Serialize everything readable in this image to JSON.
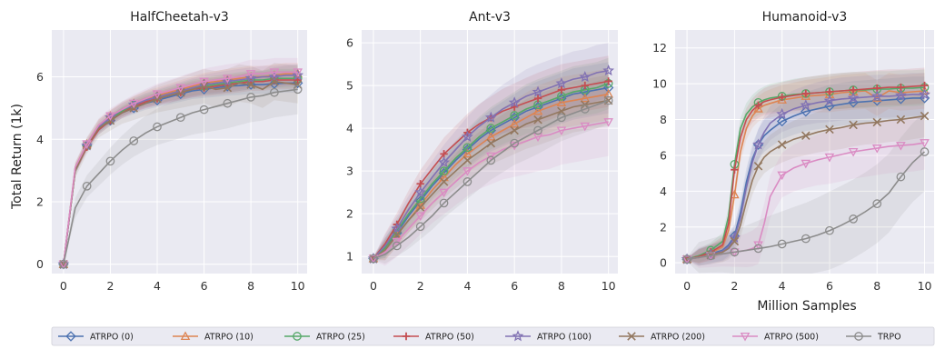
{
  "figure": {
    "ylabel": "Total Return (1k)",
    "xlabel": "Million Samples"
  },
  "legend": [
    {
      "name": "ATRPO (0)",
      "color": "#4c72b0",
      "marker": "diamond"
    },
    {
      "name": "ATRPO (10)",
      "color": "#dd8452",
      "marker": "triangle-up"
    },
    {
      "name": "ATRPO (25)",
      "color": "#55a868",
      "marker": "circle"
    },
    {
      "name": "ATRPO (50)",
      "color": "#c44e52",
      "marker": "plus"
    },
    {
      "name": "ATRPO (100)",
      "color": "#8172b3",
      "marker": "star"
    },
    {
      "name": "ATRPO (200)",
      "color": "#937860",
      "marker": "x"
    },
    {
      "name": "ATRPO (500)",
      "color": "#da8bc3",
      "marker": "triangle-down"
    },
    {
      "name": "TRPO",
      "color": "#8c8c8c",
      "marker": "circle"
    }
  ],
  "chart_data": [
    {
      "type": "line",
      "title": "HalfCheetah-v3",
      "xlabel": "",
      "ylabel": "Total Return (1k)",
      "xlim": [
        -0.5,
        10.4
      ],
      "ylim": [
        -0.3,
        7.5
      ],
      "xticks": [
        0,
        2,
        4,
        6,
        8,
        10
      ],
      "yticks": [
        0,
        2,
        4,
        6
      ],
      "grid": true,
      "x": [
        0,
        0.5,
        1,
        1.5,
        2,
        2.5,
        3,
        3.5,
        4,
        4.5,
        5,
        5.5,
        6,
        6.5,
        7,
        7.5,
        8,
        8.5,
        9,
        9.5,
        10
      ],
      "series": [
        {
          "name": "ATRPO (0)",
          "band": 0.3,
          "values": [
            0,
            3.0,
            3.8,
            4.3,
            4.6,
            4.85,
            5.0,
            5.15,
            5.25,
            5.35,
            5.45,
            5.55,
            5.6,
            5.65,
            5.7,
            5.72,
            5.75,
            5.75,
            5.78,
            5.8,
            5.8
          ]
        },
        {
          "name": "ATRPO (10)",
          "band": 0.35,
          "values": [
            0,
            3.1,
            3.85,
            4.45,
            4.75,
            4.95,
            5.15,
            5.3,
            5.4,
            5.5,
            5.6,
            5.7,
            5.8,
            5.85,
            5.9,
            5.95,
            6.0,
            6.0,
            6.05,
            6.1,
            6.1
          ]
        },
        {
          "name": "ATRPO (25)",
          "band": 0.3,
          "values": [
            0,
            3.0,
            3.8,
            4.35,
            4.65,
            4.9,
            5.1,
            5.25,
            5.35,
            5.45,
            5.55,
            5.65,
            5.7,
            5.75,
            5.8,
            5.85,
            5.9,
            5.9,
            5.95,
            5.95,
            5.95
          ]
        },
        {
          "name": "ATRPO (50)",
          "band": 0.3,
          "values": [
            0,
            3.0,
            3.75,
            4.3,
            4.6,
            4.85,
            5.05,
            5.2,
            5.3,
            5.4,
            5.5,
            5.6,
            5.65,
            5.7,
            5.75,
            5.8,
            5.85,
            5.85,
            5.9,
            5.9,
            5.9
          ]
        },
        {
          "name": "ATRPO (100)",
          "band": 0.35,
          "values": [
            0,
            3.05,
            3.8,
            4.4,
            4.7,
            4.95,
            5.1,
            5.25,
            5.35,
            5.45,
            5.55,
            5.65,
            5.75,
            5.8,
            5.85,
            5.9,
            5.95,
            6.0,
            6.0,
            6.05,
            6.05
          ]
        },
        {
          "name": "ATRPO (200)",
          "band": 0.6,
          "values": [
            0,
            3.0,
            3.8,
            4.35,
            4.6,
            4.85,
            5.0,
            5.15,
            5.3,
            5.4,
            5.5,
            5.6,
            5.7,
            5.6,
            5.65,
            5.8,
            5.75,
            5.6,
            5.85,
            5.8,
            5.75
          ]
        },
        {
          "name": "ATRPO (500)",
          "band": 0.45,
          "values": [
            0,
            3.1,
            3.85,
            4.45,
            4.75,
            4.95,
            5.15,
            5.3,
            5.45,
            5.55,
            5.65,
            5.75,
            5.85,
            5.9,
            5.95,
            6.0,
            6.1,
            6.1,
            6.15,
            6.15,
            6.15
          ]
        },
        {
          "name": "TRPO",
          "band": 0.8,
          "values": [
            0,
            1.8,
            2.5,
            2.9,
            3.3,
            3.65,
            3.95,
            4.2,
            4.4,
            4.55,
            4.7,
            4.85,
            4.95,
            5.05,
            5.15,
            5.25,
            5.35,
            5.4,
            5.5,
            5.55,
            5.6
          ]
        }
      ]
    },
    {
      "type": "line",
      "title": "Ant-v3",
      "xlabel": "",
      "ylabel": "",
      "xlim": [
        -0.5,
        10.4
      ],
      "ylim": [
        0.6,
        6.3
      ],
      "xticks": [
        0,
        2,
        4,
        6,
        8,
        10
      ],
      "yticks": [
        1,
        2,
        3,
        4,
        5,
        6
      ],
      "grid": true,
      "x": [
        0,
        0.5,
        1,
        1.5,
        2,
        2.5,
        3,
        3.5,
        4,
        4.5,
        5,
        5.5,
        6,
        6.5,
        7,
        7.5,
        8,
        8.5,
        9,
        9.5,
        10
      ],
      "series": [
        {
          "name": "ATRPO (0)",
          "band": 0.6,
          "values": [
            0.95,
            1.2,
            1.55,
            1.95,
            2.3,
            2.65,
            2.95,
            3.25,
            3.5,
            3.75,
            3.95,
            4.1,
            4.25,
            4.4,
            4.5,
            4.6,
            4.7,
            4.8,
            4.85,
            4.9,
            4.95
          ]
        },
        {
          "name": "ATRPO (10)",
          "band": 0.6,
          "values": [
            0.95,
            1.15,
            1.5,
            1.85,
            2.2,
            2.55,
            2.85,
            3.15,
            3.4,
            3.6,
            3.8,
            3.95,
            4.1,
            4.25,
            4.4,
            4.5,
            4.6,
            4.65,
            4.7,
            4.75,
            4.8
          ]
        },
        {
          "name": "ATRPO (25)",
          "band": 0.6,
          "values": [
            0.95,
            1.2,
            1.6,
            2.0,
            2.35,
            2.7,
            3.0,
            3.3,
            3.55,
            3.8,
            4.0,
            4.15,
            4.3,
            4.45,
            4.55,
            4.65,
            4.75,
            4.85,
            4.9,
            4.95,
            5.05
          ]
        },
        {
          "name": "ATRPO (50)",
          "band": 0.6,
          "values": [
            0.95,
            1.3,
            1.75,
            2.25,
            2.7,
            3.05,
            3.4,
            3.65,
            3.9,
            4.1,
            4.25,
            4.4,
            4.5,
            4.6,
            4.7,
            4.8,
            4.9,
            4.95,
            5.0,
            5.05,
            5.1
          ]
        },
        {
          "name": "ATRPO (100)",
          "band": 0.65,
          "values": [
            0.95,
            1.25,
            1.65,
            2.1,
            2.5,
            2.85,
            3.2,
            3.5,
            3.8,
            4.05,
            4.25,
            4.45,
            4.6,
            4.75,
            4.85,
            4.95,
            5.05,
            5.15,
            5.2,
            5.3,
            5.35
          ]
        },
        {
          "name": "ATRPO (200)",
          "band": 0.6,
          "values": [
            0.95,
            1.15,
            1.5,
            1.85,
            2.15,
            2.45,
            2.75,
            3.0,
            3.25,
            3.45,
            3.65,
            3.8,
            3.95,
            4.1,
            4.2,
            4.3,
            4.4,
            4.5,
            4.55,
            4.6,
            4.65
          ]
        },
        {
          "name": "ATRPO (500)",
          "band": 0.8,
          "values": [
            0.95,
            1.1,
            1.35,
            1.65,
            1.95,
            2.25,
            2.5,
            2.75,
            3.0,
            3.2,
            3.35,
            3.5,
            3.6,
            3.7,
            3.8,
            3.85,
            3.95,
            4.0,
            4.05,
            4.1,
            4.15
          ]
        },
        {
          "name": "TRPO",
          "band": 0.55,
          "values": [
            0.95,
            1.05,
            1.25,
            1.45,
            1.7,
            1.95,
            2.25,
            2.5,
            2.75,
            3.0,
            3.25,
            3.45,
            3.65,
            3.8,
            3.95,
            4.1,
            4.25,
            4.35,
            4.45,
            4.55,
            4.65
          ]
        }
      ]
    },
    {
      "type": "line",
      "title": "Humanoid-v3",
      "xlabel": "Million Samples",
      "ylabel": "",
      "xlim": [
        -0.5,
        10.4
      ],
      "ylim": [
        -0.6,
        13
      ],
      "xticks": [
        0,
        2,
        4,
        6,
        8,
        10
      ],
      "yticks": [
        0,
        2,
        4,
        6,
        8,
        10,
        12
      ],
      "grid": true,
      "x": [
        0,
        0.5,
        1,
        1.5,
        1.75,
        2,
        2.25,
        2.5,
        2.75,
        3,
        3.25,
        3.5,
        4,
        4.5,
        5,
        5.5,
        6,
        6.5,
        7,
        7.5,
        8,
        8.5,
        9,
        9.5,
        10
      ],
      "series": [
        {
          "name": "ATRPO (0)",
          "band": 1.2,
          "values": [
            0.2,
            0.35,
            0.5,
            0.7,
            1.0,
            1.5,
            2.8,
            4.5,
            5.8,
            6.6,
            7.1,
            7.4,
            7.9,
            8.2,
            8.45,
            8.6,
            8.75,
            8.85,
            8.95,
            9.0,
            9.05,
            9.1,
            9.15,
            9.2,
            9.2
          ]
        },
        {
          "name": "ATRPO (10)",
          "band": 1.0,
          "values": [
            0.2,
            0.35,
            0.55,
            0.9,
            1.8,
            3.8,
            6.2,
            7.5,
            8.2,
            8.6,
            8.8,
            8.9,
            9.1,
            9.2,
            9.3,
            9.35,
            9.4,
            9.5,
            9.55,
            9.6,
            9.2,
            9.6,
            9.5,
            9.55,
            9.6
          ]
        },
        {
          "name": "ATRPO (25)",
          "band": 1.0,
          "values": [
            0.2,
            0.4,
            0.7,
            1.2,
            2.6,
            5.5,
            7.5,
            8.3,
            8.7,
            8.95,
            9.1,
            9.2,
            9.3,
            9.4,
            9.45,
            9.5,
            9.55,
            9.6,
            9.65,
            9.65,
            9.7,
            9.7,
            9.75,
            9.75,
            9.8
          ]
        },
        {
          "name": "ATRPO (50)",
          "band": 1.0,
          "values": [
            0.2,
            0.35,
            0.6,
            1.0,
            2.2,
            5.2,
            7.0,
            8.0,
            8.5,
            8.8,
            9.0,
            9.1,
            9.25,
            9.35,
            9.45,
            9.5,
            9.55,
            9.6,
            9.65,
            9.7,
            9.75,
            9.8,
            9.8,
            9.85,
            9.9
          ]
        },
        {
          "name": "ATRPO (100)",
          "band": 1.2,
          "values": [
            0.2,
            0.3,
            0.45,
            0.65,
            0.9,
            1.4,
            2.5,
            4.2,
            5.6,
            6.6,
            7.3,
            7.8,
            8.3,
            8.6,
            8.8,
            8.95,
            9.05,
            9.15,
            9.2,
            9.25,
            9.3,
            9.3,
            9.35,
            9.4,
            9.4
          ]
        },
        {
          "name": "ATRPO (200)",
          "band": 1.2,
          "values": [
            0.2,
            0.3,
            0.45,
            0.6,
            0.8,
            1.2,
            2.1,
            3.4,
            4.6,
            5.4,
            5.9,
            6.2,
            6.6,
            6.9,
            7.1,
            7.3,
            7.45,
            7.55,
            7.7,
            7.8,
            7.85,
            7.95,
            8.0,
            8.1,
            8.2
          ]
        },
        {
          "name": "ATRPO (500)",
          "band": 1.5,
          "values": [
            0.2,
            0.3,
            0.4,
            0.5,
            0.55,
            0.6,
            0.65,
            0.7,
            0.8,
            1.0,
            2.2,
            3.7,
            4.9,
            5.3,
            5.55,
            5.75,
            5.9,
            6.05,
            6.2,
            6.3,
            6.4,
            6.5,
            6.55,
            6.6,
            6.7
          ]
        },
        {
          "name": "TRPO",
          "band": 2.2,
          "values": [
            0.2,
            0.3,
            0.4,
            0.5,
            0.55,
            0.6,
            0.65,
            0.7,
            0.75,
            0.8,
            0.85,
            0.9,
            1.05,
            1.2,
            1.35,
            1.55,
            1.8,
            2.1,
            2.45,
            2.85,
            3.3,
            3.9,
            4.8,
            5.6,
            6.2
          ]
        }
      ]
    }
  ]
}
